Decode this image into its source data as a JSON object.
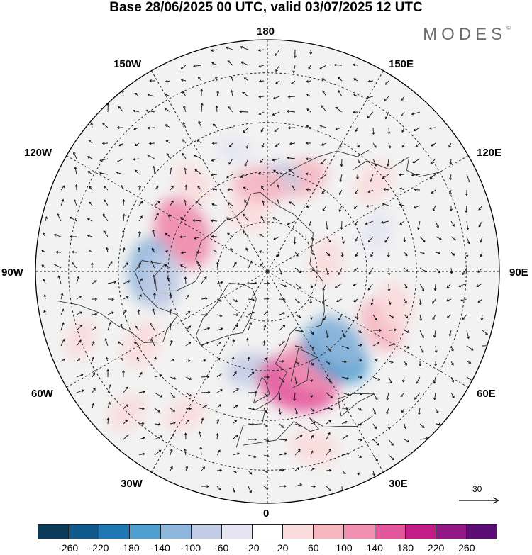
{
  "title": "Base 28/06/2025 00 UTC, valid 03/07/2025 12 UTC",
  "brand": "MODES",
  "brand_mark": "©",
  "map_labels": {
    "lon_180": "180",
    "lon_150w": "150W",
    "lon_150e": "150E",
    "lon_120w": "120W",
    "lon_120e": "120E",
    "lon_90w": "90W",
    "lon_90e": "90E",
    "lon_60w": "60W",
    "lon_60e": "60E",
    "lon_30w": "30W",
    "lon_30e": "30E",
    "lon_0": "0"
  },
  "vector_scale": "30",
  "colorbar": {
    "colors": [
      "#0b3a5a",
      "#0f5a8a",
      "#1f78b4",
      "#4f9fcf",
      "#8fb6dc",
      "#c3cde6",
      "#e6e6f2",
      "#ffffff",
      "#fbdcdc",
      "#f6b7c1",
      "#f08fb0",
      "#e4569b",
      "#c41c86",
      "#921683",
      "#5c0e76"
    ],
    "ticks": [
      "-260",
      "-220",
      "-180",
      "-140",
      "-100",
      "-60",
      "-20",
      "20",
      "60",
      "100",
      "140",
      "180",
      "220",
      "260"
    ]
  },
  "anomalies": [
    {
      "lon": -140,
      "lat": 55,
      "value": 40
    },
    {
      "lon": -165,
      "lat": 52,
      "value": -20
    },
    {
      "lon": -112,
      "lat": 60,
      "value": 90
    },
    {
      "lon": -115,
      "lat": 62,
      "value": 140
    },
    {
      "lon": -90,
      "lat": 55,
      "value": -120
    },
    {
      "lon": -85,
      "lat": 58,
      "value": -90
    },
    {
      "lon": -60,
      "lat": 46,
      "value": 60
    },
    {
      "lon": -30,
      "lat": 40,
      "value": 40
    },
    {
      "lon": -10,
      "lat": 60,
      "value": -60
    },
    {
      "lon": 15,
      "lat": 55,
      "value": 160
    },
    {
      "lon": 25,
      "lat": 58,
      "value": 110
    },
    {
      "lon": 40,
      "lat": 58,
      "value": -140
    },
    {
      "lon": 45,
      "lat": 60,
      "value": -100
    },
    {
      "lon": 65,
      "lat": 52,
      "value": 80
    },
    {
      "lon": 75,
      "lat": 50,
      "value": 60
    },
    {
      "lon": 110,
      "lat": 55,
      "value": -40
    },
    {
      "lon": 130,
      "lat": 48,
      "value": 50
    },
    {
      "lon": 160,
      "lat": 60,
      "value": 70
    },
    {
      "lon": 175,
      "lat": 62,
      "value": -60
    },
    {
      "lon": -175,
      "lat": 64,
      "value": 80
    },
    {
      "lon": -160,
      "lat": 72,
      "value": 40
    },
    {
      "lon": 100,
      "lat": 72,
      "value": 50
    },
    {
      "lon": -45,
      "lat": 30,
      "value": 40
    },
    {
      "lon": 15,
      "lat": 35,
      "value": 60
    },
    {
      "lon": -70,
      "lat": 30,
      "value": 30
    }
  ]
}
